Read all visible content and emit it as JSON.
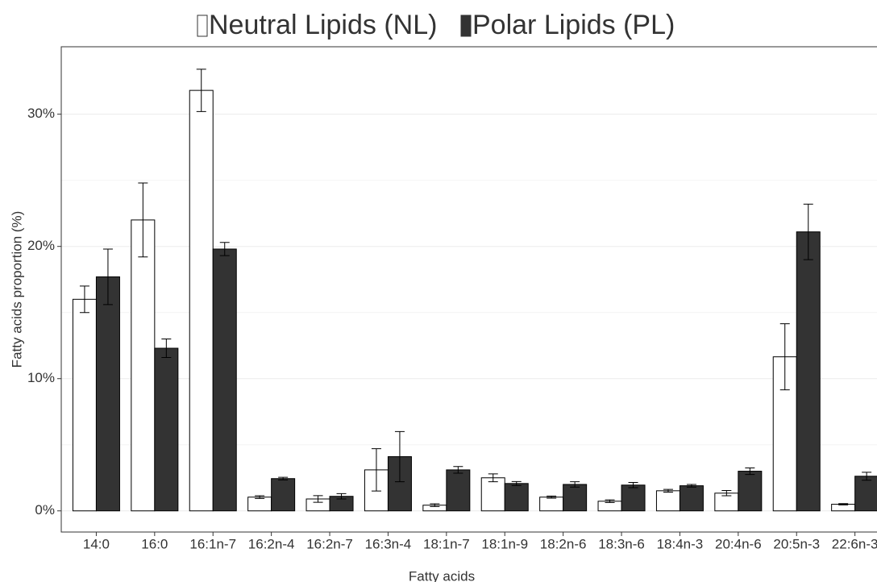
{
  "chart_data": {
    "type": "bar",
    "xlabel": "Fatty acids",
    "ylabel": "Fatty acids proportion (%)",
    "categories": [
      "14:0",
      "16:0",
      "16:1n-7",
      "16:2n-4",
      "16:2n-7",
      "16:3n-4",
      "18:1n-7",
      "18:1n-9",
      "18:2n-6",
      "18:3n-6",
      "18:4n-3",
      "20:4n-6",
      "20:5n-3",
      "22:6n-3"
    ],
    "series": [
      {
        "name": "Neutral Lipids (NL)",
        "color": "#ffffff",
        "values": [
          16.0,
          22.0,
          31.8,
          1.04,
          0.9,
          3.1,
          0.43,
          2.5,
          1.04,
          0.73,
          1.52,
          1.34,
          11.65,
          0.5
        ],
        "errors": [
          1.0,
          2.8,
          1.6,
          0.1,
          0.25,
          1.6,
          0.1,
          0.3,
          0.08,
          0.1,
          0.1,
          0.2,
          2.5,
          0.05
        ]
      },
      {
        "name": "Polar Lipids (PL)",
        "color": "#333333",
        "values": [
          17.7,
          12.3,
          19.8,
          2.44,
          1.1,
          4.1,
          3.1,
          2.07,
          2.0,
          1.95,
          1.9,
          3.0,
          21.1,
          2.62
        ],
        "errors": [
          2.1,
          0.7,
          0.5,
          0.1,
          0.2,
          1.9,
          0.25,
          0.15,
          0.2,
          0.2,
          0.1,
          0.25,
          2.1,
          0.3
        ]
      }
    ],
    "ylim": [
      -1.6,
      35.1
    ],
    "yticks": [
      {
        "value": 0,
        "label": "0%"
      },
      {
        "value": 10,
        "label": "10%"
      },
      {
        "value": 20,
        "label": "20%"
      },
      {
        "value": 30,
        "label": "30%"
      }
    ],
    "minor_yticks": [
      5,
      15,
      25
    ],
    "grid": true,
    "legend": "top"
  }
}
